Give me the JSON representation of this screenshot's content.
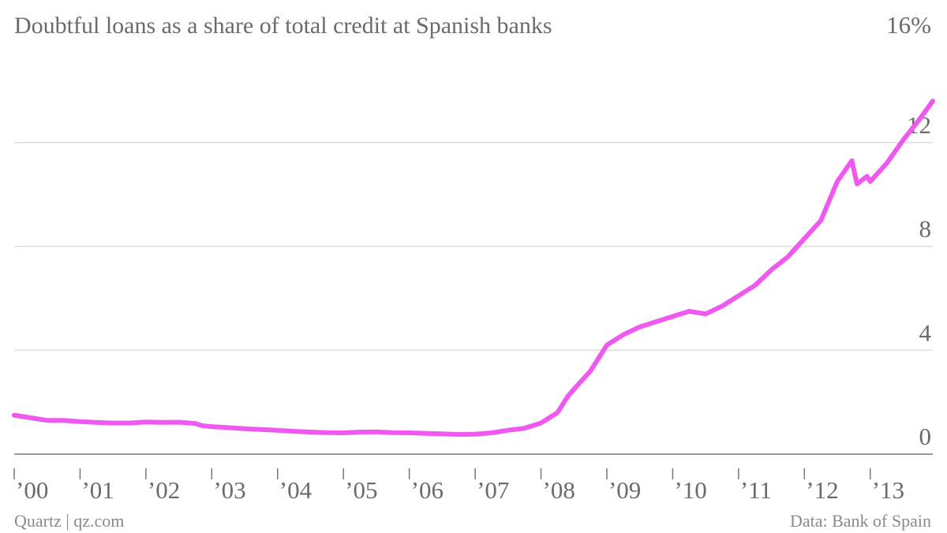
{
  "chart_data": {
    "type": "line",
    "title": "Doubtful loans as a share of total credit at Spanish banks",
    "y_unit": "%",
    "ylim": [
      0,
      16
    ],
    "y_ticks": [
      0,
      4,
      8,
      12,
      16
    ],
    "y_tick_labels": [
      "0",
      "4",
      "8",
      "12",
      "16%"
    ],
    "xlim": [
      2000.0,
      2013.95
    ],
    "x_tick_labels": [
      "’00",
      "’01",
      "’02",
      "’03",
      "’04",
      "’05",
      "’06",
      "’07",
      "’08",
      "’09",
      "’10",
      "’11",
      "’12",
      "’13"
    ],
    "grid": true,
    "legend": "none",
    "series": [
      {
        "color": "#f059f0",
        "points": [
          [
            2000.0,
            1.5
          ],
          [
            2000.25,
            1.4
          ],
          [
            2000.5,
            1.3
          ],
          [
            2000.75,
            1.3
          ],
          [
            2001.0,
            1.25
          ],
          [
            2001.25,
            1.22
          ],
          [
            2001.5,
            1.2
          ],
          [
            2001.75,
            1.2
          ],
          [
            2002.0,
            1.24
          ],
          [
            2002.25,
            1.22
          ],
          [
            2002.5,
            1.23
          ],
          [
            2002.75,
            1.18
          ],
          [
            2002.85,
            1.1
          ],
          [
            2003.0,
            1.06
          ],
          [
            2003.25,
            1.02
          ],
          [
            2003.5,
            0.98
          ],
          [
            2003.75,
            0.95
          ],
          [
            2004.0,
            0.92
          ],
          [
            2004.25,
            0.88
          ],
          [
            2004.5,
            0.85
          ],
          [
            2004.75,
            0.83
          ],
          [
            2005.0,
            0.82
          ],
          [
            2005.25,
            0.85
          ],
          [
            2005.5,
            0.86
          ],
          [
            2005.75,
            0.83
          ],
          [
            2006.0,
            0.82
          ],
          [
            2006.25,
            0.8
          ],
          [
            2006.5,
            0.78
          ],
          [
            2006.75,
            0.76
          ],
          [
            2007.0,
            0.77
          ],
          [
            2007.25,
            0.82
          ],
          [
            2007.5,
            0.92
          ],
          [
            2007.75,
            1.0
          ],
          [
            2008.0,
            1.2
          ],
          [
            2008.25,
            1.6
          ],
          [
            2008.4,
            2.2
          ],
          [
            2008.5,
            2.5
          ],
          [
            2008.75,
            3.2
          ],
          [
            2009.0,
            4.2
          ],
          [
            2009.25,
            4.6
          ],
          [
            2009.5,
            4.9
          ],
          [
            2009.75,
            5.1
          ],
          [
            2010.0,
            5.3
          ],
          [
            2010.25,
            5.5
          ],
          [
            2010.5,
            5.4
          ],
          [
            2010.75,
            5.7
          ],
          [
            2011.0,
            6.1
          ],
          [
            2011.25,
            6.5
          ],
          [
            2011.5,
            7.1
          ],
          [
            2011.75,
            7.6
          ],
          [
            2012.0,
            8.3
          ],
          [
            2012.25,
            9.0
          ],
          [
            2012.5,
            10.5
          ],
          [
            2012.72,
            11.3
          ],
          [
            2012.8,
            10.4
          ],
          [
            2012.95,
            10.7
          ],
          [
            2013.0,
            10.5
          ],
          [
            2013.25,
            11.2
          ],
          [
            2013.5,
            12.1
          ],
          [
            2013.75,
            12.9
          ],
          [
            2013.95,
            13.6
          ]
        ]
      }
    ]
  },
  "footer": {
    "source_left": "Quartz | qz.com",
    "source_right": "Data: Bank of Spain"
  }
}
